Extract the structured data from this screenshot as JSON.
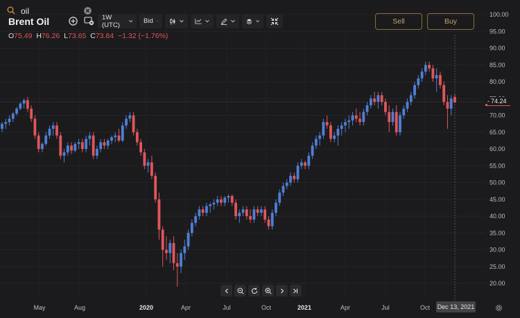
{
  "search": {
    "value": "oil"
  },
  "instrument": {
    "title": "Brent Oil"
  },
  "toolbar": {
    "timeframe_label": "1W (UTC)",
    "price_type_label": "Bid"
  },
  "ohlc": {
    "o_label": "O",
    "o_value": "75.49",
    "h_label": "H",
    "h_value": "76.26",
    "l_label": "L",
    "l_value": "73.65",
    "c_label": "C",
    "c_value": "73.84",
    "change": "−1.32 (−1.76%)"
  },
  "trade": {
    "sell_label": "Sell",
    "buy_label": "Buy"
  },
  "current_price": "74.24",
  "date_badge": "Dec 13, 2021",
  "colors": {
    "up": "#4f7fd6",
    "down": "#e0565b",
    "background": "#1b1b1d",
    "accent": "#c9a26a"
  },
  "icons": [
    "search-icon",
    "clear-icon",
    "add-indicator-icon",
    "compare-icon",
    "candle-icon",
    "bars-icon",
    "draw-icon",
    "layers-icon",
    "collapse-icon",
    "chevron-left-icon",
    "zoom-out-icon",
    "reset-icon",
    "zoom-in-icon",
    "chevron-right-icon",
    "skip-to-end-icon",
    "gear-icon"
  ],
  "chart_data": {
    "type": "candlestick",
    "yticks": [
      "100.00",
      "95.00",
      "90.00",
      "85.00",
      "80.00",
      "75.00",
      "70.00",
      "65.00",
      "60.00",
      "55.00",
      "50.00",
      "45.00",
      "40.00",
      "35.00",
      "30.00",
      "25.00",
      "20.00"
    ],
    "xticks": [
      {
        "label": "May",
        "bold": false
      },
      {
        "label": "Aug",
        "bold": false
      },
      {
        "label": "2020",
        "bold": true
      },
      {
        "label": "Apr",
        "bold": false
      },
      {
        "label": "Jul",
        "bold": false
      },
      {
        "label": "Oct",
        "bold": false
      },
      {
        "label": "2021",
        "bold": true
      },
      {
        "label": "Apr",
        "bold": false
      },
      {
        "label": "Jul",
        "bold": false
      },
      {
        "label": "Oct",
        "bold": false
      }
    ],
    "ylim": [
      18,
      102
    ],
    "candles": [
      [
        66,
        68,
        65,
        67.5
      ],
      [
        67.5,
        69,
        66,
        68
      ],
      [
        68,
        70,
        67,
        69
      ],
      [
        69,
        71,
        68,
        70.5
      ],
      [
        70.5,
        72.5,
        70,
        72
      ],
      [
        72,
        74,
        71.5,
        73.5
      ],
      [
        73.5,
        75,
        72,
        74.5
      ],
      [
        74.5,
        75.5,
        71,
        72
      ],
      [
        72,
        73,
        68,
        69
      ],
      [
        69,
        70,
        63,
        64
      ],
      [
        64,
        65,
        59,
        60
      ],
      [
        60,
        62,
        59,
        61.5
      ],
      [
        61.5,
        65,
        61,
        64
      ],
      [
        64,
        67,
        63,
        66
      ],
      [
        66,
        68,
        64,
        67
      ],
      [
        67,
        68,
        63,
        64
      ],
      [
        64,
        65,
        57,
        58
      ],
      [
        58,
        60,
        56,
        59
      ],
      [
        59,
        62,
        58,
        61
      ],
      [
        61,
        62,
        58.5,
        59.5
      ],
      [
        59.5,
        62,
        59,
        61.5
      ],
      [
        61.5,
        63,
        60,
        62
      ],
      [
        62,
        63,
        59,
        60
      ],
      [
        60,
        64,
        59,
        63
      ],
      [
        63,
        65,
        61,
        64
      ],
      [
        64,
        65,
        57,
        58
      ],
      [
        58,
        61,
        57,
        60
      ],
      [
        60,
        63,
        59,
        62
      ],
      [
        62,
        63,
        60,
        61
      ],
      [
        61,
        63,
        60,
        62.5
      ],
      [
        62.5,
        64,
        61.5,
        63.5
      ],
      [
        63.5,
        65,
        62,
        64
      ],
      [
        64,
        66,
        62,
        62.5
      ],
      [
        62.5,
        68,
        62,
        67
      ],
      [
        67,
        70,
        66,
        69
      ],
      [
        69,
        71,
        68,
        70
      ],
      [
        70,
        71,
        64,
        65
      ],
      [
        65,
        66,
        61,
        62
      ],
      [
        62,
        63,
        58,
        59
      ],
      [
        59,
        60,
        54,
        55
      ],
      [
        55,
        57,
        53,
        56
      ],
      [
        56,
        58,
        51,
        52
      ],
      [
        52,
        53,
        44,
        45
      ],
      [
        45,
        47,
        33,
        36
      ],
      [
        36,
        37,
        25,
        30
      ],
      [
        30,
        34,
        27,
        29
      ],
      [
        29,
        33,
        26,
        32
      ],
      [
        32,
        34,
        24,
        26
      ],
      [
        26,
        29,
        19,
        25
      ],
      [
        25,
        30,
        23,
        29
      ],
      [
        29,
        33,
        27,
        31
      ],
      [
        31,
        36,
        30,
        35
      ],
      [
        35,
        39,
        34,
        38
      ],
      [
        38,
        41,
        37,
        40
      ],
      [
        40,
        43,
        39,
        42
      ],
      [
        42,
        43,
        40,
        41
      ],
      [
        41,
        44,
        40,
        43
      ],
      [
        43,
        44,
        41,
        43.5
      ],
      [
        43.5,
        45,
        42,
        44
      ],
      [
        44,
        46,
        43,
        45
      ],
      [
        45,
        46,
        43,
        44
      ],
      [
        44,
        46,
        43,
        45.5
      ],
      [
        45.5,
        46.5,
        44,
        46
      ],
      [
        46,
        46.5,
        43,
        44
      ],
      [
        44,
        45,
        39,
        40
      ],
      [
        40,
        42,
        38,
        41
      ],
      [
        41,
        43,
        40,
        42
      ],
      [
        42,
        43,
        39,
        40
      ],
      [
        40,
        42,
        38,
        39
      ],
      [
        39,
        43,
        38,
        42
      ],
      [
        42,
        43,
        40,
        41
      ],
      [
        41,
        43,
        40,
        42
      ],
      [
        42,
        43,
        38,
        39
      ],
      [
        39,
        40,
        36,
        37
      ],
      [
        37,
        42,
        36,
        41
      ],
      [
        41,
        45,
        40,
        44
      ],
      [
        44,
        48,
        43,
        47
      ],
      [
        47,
        50,
        46,
        49
      ],
      [
        49,
        51,
        48,
        50
      ],
      [
        50,
        53,
        49,
        52
      ],
      [
        52,
        53,
        50,
        51
      ],
      [
        51,
        56,
        50,
        55
      ],
      [
        55,
        57,
        54,
        56
      ],
      [
        56,
        56.5,
        54,
        55
      ],
      [
        55,
        59,
        54,
        58
      ],
      [
        58,
        62,
        57,
        61
      ],
      [
        61,
        64,
        60,
        63
      ],
      [
        63,
        65,
        61,
        64
      ],
      [
        64,
        69,
        63,
        68
      ],
      [
        68,
        70,
        66,
        67
      ],
      [
        67,
        68,
        62,
        63
      ],
      [
        63,
        65,
        62,
        64
      ],
      [
        64,
        67,
        61,
        66
      ],
      [
        66,
        68,
        64,
        67
      ],
      [
        67,
        69,
        65,
        68
      ],
      [
        68,
        70,
        66,
        68.5
      ],
      [
        68.5,
        71,
        67,
        70
      ],
      [
        70,
        72,
        68,
        69
      ],
      [
        69,
        71,
        67,
        68
      ],
      [
        68,
        72,
        67,
        71
      ],
      [
        71,
        74,
        70,
        73
      ],
      [
        73,
        76,
        72,
        75
      ],
      [
        75,
        77,
        73,
        74
      ],
      [
        74,
        77,
        72,
        76
      ],
      [
        76,
        77,
        73,
        74
      ],
      [
        74,
        75,
        70,
        71
      ],
      [
        71,
        73,
        65,
        68
      ],
      [
        68,
        72,
        67,
        71
      ],
      [
        71,
        73,
        64,
        65
      ],
      [
        65,
        71,
        64,
        70
      ],
      [
        70,
        73,
        69,
        72
      ],
      [
        72,
        75,
        71,
        74
      ],
      [
        74,
        77,
        73,
        76
      ],
      [
        76,
        80,
        75,
        79
      ],
      [
        79,
        82,
        78,
        81
      ],
      [
        81,
        84,
        80,
        83
      ],
      [
        83,
        86,
        82,
        85
      ],
      [
        85,
        86,
        83,
        84
      ],
      [
        84,
        85,
        80,
        81
      ],
      [
        81,
        84,
        77,
        82
      ],
      [
        82,
        83,
        78,
        79
      ],
      [
        79,
        80,
        73,
        74
      ],
      [
        74,
        76,
        66,
        72
      ],
      [
        72,
        76,
        70,
        75
      ],
      [
        75.49,
        76.26,
        73.65,
        73.84
      ]
    ]
  }
}
